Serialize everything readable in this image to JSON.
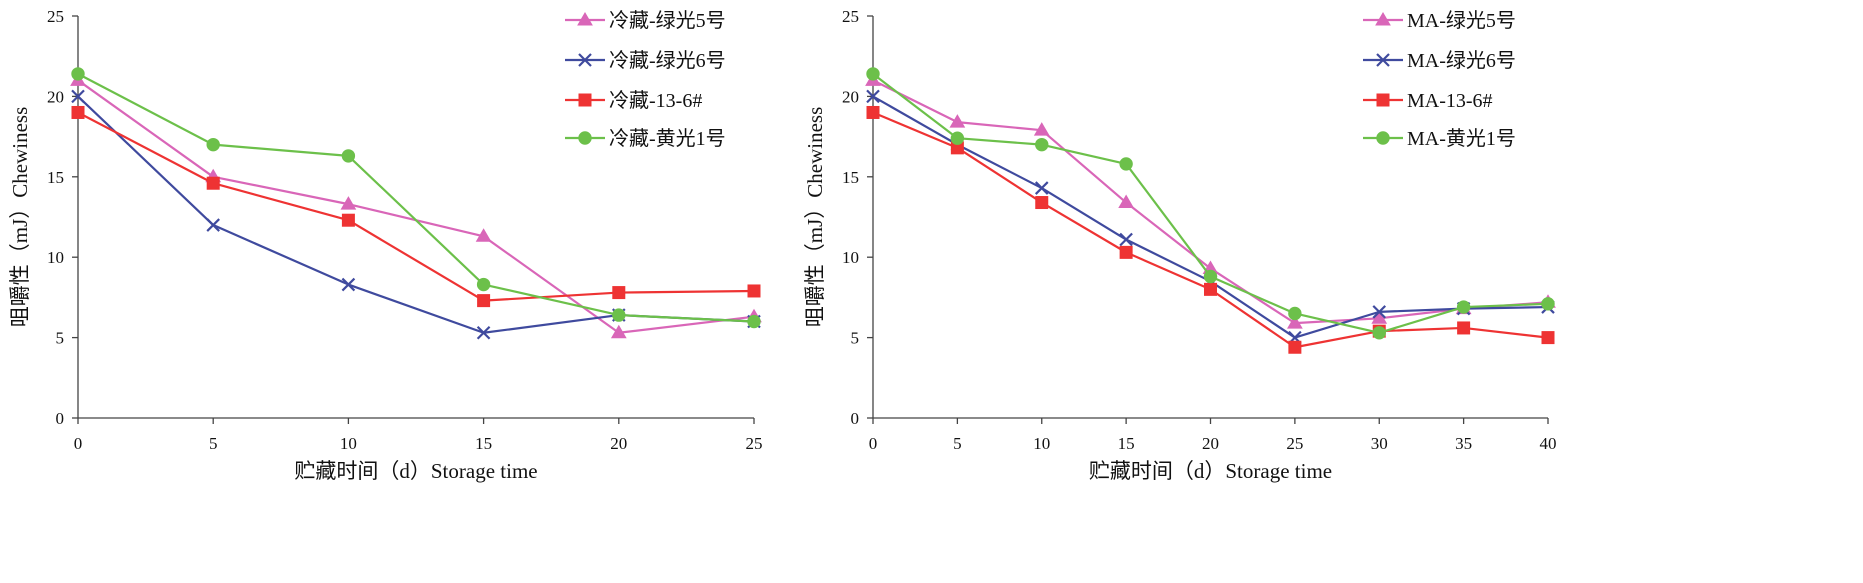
{
  "chart_data": [
    {
      "type": "line",
      "title": "",
      "xlabel": "贮藏时间（d）Storage time",
      "ylabel": "咀嚼性（mJ）Chewiness",
      "x": [
        0,
        5,
        10,
        15,
        20,
        25
      ],
      "xlim": [
        0,
        25
      ],
      "ylim": [
        0,
        25
      ],
      "xticks": [
        "0",
        "5",
        "10",
        "15",
        "20",
        "25"
      ],
      "yticks": [
        "0",
        "5",
        "10",
        "15",
        "20",
        "25"
      ],
      "grid": false,
      "legend_position": "top-right",
      "series": [
        {
          "name": "冷藏-绿光5号",
          "color": "#d966b8",
          "marker": "triangle",
          "values": [
            21.0,
            15.0,
            13.3,
            11.3,
            5.3,
            6.3
          ]
        },
        {
          "name": "冷藏-绿光6号",
          "color": "#3f4a9e",
          "marker": "x",
          "values": [
            20.0,
            12.0,
            8.3,
            5.3,
            6.4,
            6.0
          ]
        },
        {
          "name": "冷藏-13-6#",
          "color": "#ee3333",
          "marker": "square",
          "values": [
            19.0,
            14.6,
            12.3,
            7.3,
            7.8,
            7.9
          ]
        },
        {
          "name": "冷藏-黄光1号",
          "color": "#6cc04a",
          "marker": "circle",
          "values": [
            21.4,
            17.0,
            16.3,
            8.3,
            6.4,
            6.0
          ]
        }
      ]
    },
    {
      "type": "line",
      "title": "",
      "xlabel": "贮藏时间（d）Storage time",
      "ylabel": "咀嚼性（mJ）Chewiness",
      "x": [
        0,
        5,
        10,
        15,
        20,
        25,
        30,
        35,
        40
      ],
      "xlim": [
        0,
        40
      ],
      "ylim": [
        0,
        25
      ],
      "xticks": [
        "0",
        "5",
        "10",
        "15",
        "20",
        "25",
        "30",
        "35",
        "40"
      ],
      "yticks": [
        "0",
        "5",
        "10",
        "15",
        "20",
        "25"
      ],
      "grid": false,
      "legend_position": "top-right",
      "series": [
        {
          "name": "MA-绿光5号",
          "color": "#d966b8",
          "marker": "triangle",
          "values": [
            21.0,
            18.4,
            17.9,
            13.4,
            9.3,
            5.9,
            6.2,
            6.8,
            7.2
          ]
        },
        {
          "name": "MA-绿光6号",
          "color": "#3f4a9e",
          "marker": "x",
          "values": [
            20.0,
            17.0,
            14.3,
            11.1,
            8.5,
            5.0,
            6.6,
            6.8,
            6.9
          ]
        },
        {
          "name": "MA-13-6#",
          "color": "#ee3333",
          "marker": "square",
          "values": [
            19.0,
            16.8,
            13.4,
            10.3,
            8.0,
            4.4,
            5.4,
            5.6,
            5.0
          ]
        },
        {
          "name": "MA-黄光1号",
          "color": "#6cc04a",
          "marker": "circle",
          "values": [
            21.4,
            17.4,
            17.0,
            15.8,
            8.8,
            6.5,
            5.3,
            6.9,
            7.1
          ]
        }
      ]
    }
  ]
}
